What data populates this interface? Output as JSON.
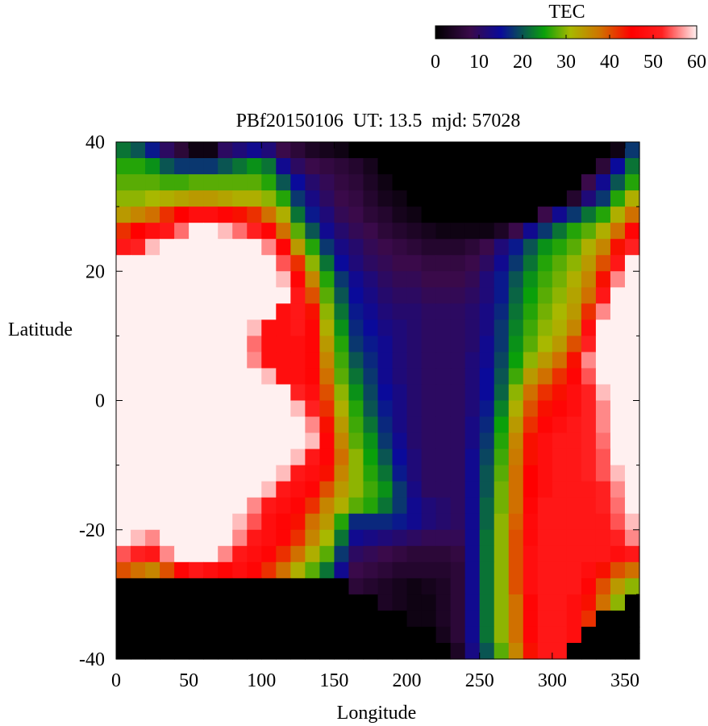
{
  "chart_data": {
    "type": "heatmap",
    "title": "PBf20150106  UT: 13.5  mjd: 57028",
    "xlabel": "Longitude",
    "ylabel": "Latitude",
    "xlim": [
      0,
      360
    ],
    "ylim": [
      -40,
      40
    ],
    "x_ticks": [
      0,
      50,
      100,
      150,
      200,
      250,
      300,
      350
    ],
    "y_ticks": [
      -40,
      -20,
      0,
      20,
      40
    ],
    "colorbar": {
      "label": "TEC",
      "range": [
        0,
        60
      ],
      "ticks": [
        0,
        10,
        20,
        30,
        40,
        50,
        60
      ],
      "stops": [
        {
          "value": 0,
          "color": "#000000"
        },
        {
          "value": 8,
          "color": "#3a0a4a"
        },
        {
          "value": 15,
          "color": "#0a0a9a"
        },
        {
          "value": 25,
          "color": "#0aa00a"
        },
        {
          "value": 31,
          "color": "#a8b800"
        },
        {
          "value": 38,
          "color": "#d07000"
        },
        {
          "value": 45,
          "color": "#ff0000"
        },
        {
          "value": 52,
          "color": "#ff2020"
        },
        {
          "value": 60,
          "color": "#fff0f0"
        }
      ]
    },
    "grid": {
      "lon_step": 10,
      "lat_step": 2.5,
      "lon": [
        0,
        10,
        20,
        30,
        40,
        50,
        60,
        70,
        80,
        90,
        100,
        110,
        120,
        130,
        140,
        150,
        160,
        170,
        180,
        190,
        200,
        210,
        220,
        230,
        240,
        250,
        260,
        270,
        280,
        290,
        300,
        310,
        320,
        330,
        340,
        350
      ],
      "lat": [
        40,
        37.5,
        35,
        32.5,
        30,
        27.5,
        25,
        22.5,
        20,
        17.5,
        15,
        12.5,
        10,
        7.5,
        5,
        2.5,
        0,
        -2.5,
        -5,
        -7.5,
        -10,
        -12.5,
        -15,
        -17.5,
        -20,
        -22.5,
        -25,
        -27.5,
        -30,
        -32.5,
        -35,
        -37.5
      ],
      "tec": [
        [
          22,
          20,
          16,
          10,
          6,
          2,
          2,
          10,
          12,
          14,
          12,
          8,
          6,
          4,
          3,
          2,
          0,
          0,
          0,
          0,
          0,
          0,
          0,
          0,
          0,
          0,
          0,
          0,
          0,
          0,
          0,
          0,
          0,
          0,
          2,
          18
        ],
        [
          26,
          26,
          24,
          20,
          18,
          18,
          18,
          20,
          22,
          24,
          22,
          14,
          10,
          8,
          7,
          6,
          5,
          3,
          0,
          0,
          0,
          0,
          0,
          0,
          0,
          0,
          0,
          0,
          0,
          0,
          0,
          0,
          0,
          6,
          15,
          22
        ],
        [
          28,
          28,
          28,
          27,
          27,
          28,
          28,
          28,
          28,
          28,
          26,
          20,
          15,
          11,
          9,
          7,
          6,
          4,
          2,
          0,
          0,
          0,
          0,
          0,
          0,
          0,
          0,
          0,
          0,
          0,
          0,
          0,
          8,
          14,
          20,
          26
        ],
        [
          30,
          30,
          31,
          32,
          33,
          34,
          34,
          33,
          32,
          32,
          30,
          26,
          18,
          13,
          10,
          8,
          7,
          5,
          3,
          2,
          0,
          0,
          0,
          0,
          0,
          0,
          0,
          0,
          0,
          0,
          0,
          5,
          12,
          18,
          26,
          32
        ],
        [
          34,
          36,
          38,
          42,
          45,
          48,
          48,
          46,
          44,
          42,
          38,
          32,
          22,
          16,
          12,
          9,
          8,
          6,
          5,
          3,
          2,
          0,
          0,
          0,
          0,
          0,
          0,
          0,
          0,
          8,
          14,
          18,
          22,
          26,
          32,
          38
        ],
        [
          42,
          45,
          48,
          50,
          55,
          60,
          60,
          58,
          55,
          52,
          46,
          38,
          28,
          20,
          14,
          11,
          9,
          8,
          6,
          5,
          4,
          3,
          2,
          2,
          2,
          2,
          4,
          8,
          14,
          18,
          22,
          26,
          28,
          32,
          38,
          46
        ],
        [
          50,
          52,
          58,
          60,
          60,
          60,
          60,
          60,
          60,
          60,
          56,
          46,
          34,
          26,
          18,
          13,
          11,
          9,
          8,
          7,
          6,
          5,
          5,
          5,
          6,
          8,
          12,
          16,
          20,
          24,
          26,
          28,
          32,
          36,
          44,
          52
        ],
        [
          60,
          60,
          60,
          60,
          60,
          60,
          60,
          60,
          60,
          60,
          60,
          54,
          42,
          30,
          22,
          15,
          12,
          10,
          9,
          8,
          8,
          7,
          7,
          7,
          8,
          10,
          14,
          18,
          22,
          26,
          28,
          30,
          34,
          40,
          50,
          60
        ],
        [
          60,
          60,
          60,
          60,
          60,
          60,
          60,
          60,
          60,
          60,
          60,
          58,
          46,
          36,
          26,
          18,
          14,
          12,
          10,
          9,
          9,
          8,
          8,
          8,
          9,
          12,
          16,
          20,
          24,
          27,
          29,
          32,
          36,
          44,
          56,
          60
        ],
        [
          60,
          60,
          60,
          60,
          60,
          60,
          60,
          60,
          60,
          60,
          60,
          60,
          50,
          40,
          28,
          20,
          15,
          13,
          11,
          10,
          10,
          9,
          9,
          9,
          10,
          12,
          16,
          21,
          25,
          28,
          30,
          33,
          38,
          50,
          60,
          60
        ],
        [
          60,
          60,
          60,
          60,
          60,
          60,
          60,
          60,
          60,
          60,
          60,
          48,
          50,
          44,
          30,
          22,
          16,
          14,
          12,
          11,
          11,
          10,
          10,
          10,
          11,
          13,
          17,
          22,
          26,
          29,
          31,
          34,
          42,
          56,
          60,
          60
        ],
        [
          60,
          60,
          60,
          60,
          60,
          60,
          60,
          60,
          60,
          58,
          48,
          48,
          50,
          46,
          32,
          24,
          17,
          15,
          13,
          12,
          11,
          10,
          10,
          10,
          11,
          13,
          18,
          23,
          27,
          30,
          32,
          36,
          48,
          60,
          60,
          60
        ],
        [
          60,
          60,
          60,
          60,
          60,
          60,
          60,
          60,
          60,
          55,
          48,
          48,
          48,
          46,
          34,
          26,
          18,
          16,
          14,
          12,
          11,
          10,
          10,
          10,
          11,
          14,
          18,
          24,
          28,
          31,
          34,
          40,
          52,
          60,
          60,
          60
        ],
        [
          60,
          60,
          60,
          60,
          60,
          60,
          60,
          60,
          60,
          56,
          48,
          48,
          48,
          46,
          36,
          27,
          20,
          17,
          14,
          12,
          11,
          10,
          10,
          10,
          12,
          14,
          19,
          25,
          30,
          34,
          38,
          44,
          56,
          60,
          60,
          60
        ],
        [
          60,
          60,
          60,
          60,
          60,
          60,
          60,
          60,
          60,
          60,
          58,
          48,
          48,
          46,
          38,
          28,
          22,
          18,
          14,
          12,
          11,
          10,
          10,
          10,
          12,
          15,
          20,
          27,
          34,
          38,
          42,
          46,
          54,
          60,
          60,
          60
        ],
        [
          60,
          60,
          60,
          60,
          60,
          60,
          60,
          60,
          60,
          60,
          60,
          60,
          52,
          48,
          40,
          30,
          24,
          19,
          15,
          13,
          11,
          10,
          10,
          10,
          12,
          15,
          21,
          30,
          38,
          42,
          44,
          48,
          52,
          58,
          60,
          60
        ],
        [
          60,
          60,
          60,
          60,
          60,
          60,
          60,
          60,
          60,
          60,
          60,
          60,
          58,
          52,
          42,
          32,
          26,
          20,
          16,
          13,
          11,
          10,
          10,
          10,
          12,
          16,
          23,
          32,
          40,
          44,
          46,
          48,
          52,
          56,
          60,
          60
        ],
        [
          60,
          60,
          60,
          60,
          60,
          60,
          60,
          60,
          60,
          60,
          60,
          60,
          60,
          56,
          44,
          34,
          27,
          22,
          17,
          13,
          11,
          10,
          10,
          10,
          13,
          17,
          25,
          34,
          42,
          46,
          48,
          50,
          52,
          56,
          60,
          60
        ],
        [
          60,
          60,
          60,
          60,
          60,
          60,
          60,
          60,
          60,
          60,
          60,
          60,
          60,
          58,
          46,
          36,
          28,
          24,
          18,
          14,
          11,
          10,
          10,
          10,
          13,
          18,
          26,
          36,
          44,
          48,
          50,
          50,
          52,
          55,
          60,
          60
        ],
        [
          60,
          60,
          60,
          60,
          60,
          60,
          60,
          60,
          60,
          60,
          60,
          60,
          58,
          50,
          46,
          38,
          30,
          25,
          20,
          15,
          12,
          10,
          10,
          10,
          14,
          19,
          27,
          37,
          44,
          48,
          50,
          50,
          52,
          54,
          60,
          60
        ],
        [
          60,
          60,
          60,
          60,
          60,
          60,
          60,
          60,
          60,
          60,
          60,
          58,
          50,
          48,
          44,
          36,
          30,
          26,
          22,
          16,
          12,
          10,
          10,
          10,
          14,
          20,
          28,
          38,
          45,
          48,
          50,
          50,
          52,
          54,
          58,
          60
        ],
        [
          60,
          60,
          60,
          60,
          60,
          60,
          60,
          60,
          60,
          60,
          58,
          50,
          48,
          46,
          40,
          34,
          30,
          27,
          24,
          18,
          13,
          10,
          10,
          10,
          14,
          20,
          29,
          38,
          45,
          48,
          50,
          50,
          50,
          52,
          56,
          60
        ],
        [
          60,
          60,
          60,
          60,
          60,
          60,
          60,
          60,
          60,
          56,
          50,
          48,
          46,
          42,
          36,
          32,
          28,
          26,
          22,
          18,
          14,
          12,
          11,
          10,
          14,
          21,
          29,
          38,
          46,
          50,
          50,
          50,
          50,
          52,
          55,
          60
        ],
        [
          60,
          60,
          60,
          60,
          60,
          60,
          60,
          60,
          58,
          54,
          48,
          46,
          44,
          38,
          34,
          26,
          17,
          17,
          17,
          16,
          14,
          12,
          11,
          10,
          14,
          21,
          30,
          39,
          47,
          50,
          50,
          50,
          50,
          50,
          54,
          58
        ],
        [
          60,
          58,
          56,
          60,
          60,
          60,
          60,
          60,
          56,
          50,
          48,
          46,
          42,
          36,
          31,
          22,
          14,
          13,
          12,
          11,
          10,
          9,
          9,
          9,
          14,
          22,
          30,
          40,
          47,
          50,
          50,
          50,
          50,
          50,
          52,
          56
        ],
        [
          54,
          52,
          50,
          56,
          60,
          60,
          60,
          56,
          50,
          48,
          46,
          42,
          38,
          32,
          28,
          18,
          10,
          9,
          8,
          7,
          6,
          6,
          6,
          7,
          14,
          22,
          30,
          40,
          48,
          50,
          50,
          50,
          50,
          50,
          48,
          50
        ],
        [
          40,
          38,
          36,
          40,
          46,
          50,
          48,
          46,
          48,
          46,
          42,
          38,
          32,
          28,
          22,
          14,
          8,
          7,
          6,
          5,
          5,
          5,
          5,
          6,
          14,
          22,
          30,
          40,
          48,
          50,
          50,
          50,
          48,
          44,
          40,
          38
        ],
        [
          0,
          0,
          0,
          0,
          0,
          0,
          0,
          0,
          0,
          0,
          0,
          0,
          0,
          0,
          0,
          0,
          6,
          5,
          4,
          3,
          2,
          3,
          4,
          6,
          14,
          22,
          30,
          40,
          48,
          50,
          50,
          50,
          46,
          40,
          34,
          30
        ],
        [
          0,
          0,
          0,
          0,
          0,
          0,
          0,
          0,
          0,
          0,
          0,
          0,
          0,
          0,
          0,
          0,
          0,
          0,
          4,
          3,
          2,
          2,
          4,
          6,
          14,
          22,
          30,
          38,
          46,
          50,
          50,
          48,
          44,
          38,
          30,
          0
        ],
        [
          0,
          0,
          0,
          0,
          0,
          0,
          0,
          0,
          0,
          0,
          0,
          0,
          0,
          0,
          0,
          0,
          0,
          0,
          0,
          0,
          2,
          2,
          4,
          6,
          14,
          22,
          30,
          38,
          46,
          50,
          50,
          48,
          42,
          0,
          0,
          0
        ],
        [
          0,
          0,
          0,
          0,
          0,
          0,
          0,
          0,
          0,
          0,
          0,
          0,
          0,
          0,
          0,
          0,
          0,
          0,
          0,
          0,
          0,
          0,
          3,
          6,
          14,
          22,
          30,
          38,
          46,
          50,
          50,
          48,
          0,
          0,
          0,
          0
        ],
        [
          0,
          0,
          0,
          0,
          0,
          0,
          0,
          0,
          0,
          0,
          0,
          0,
          0,
          0,
          0,
          0,
          0,
          0,
          0,
          0,
          0,
          0,
          0,
          4,
          13,
          20,
          28,
          36,
          44,
          50,
          50,
          0,
          0,
          0,
          0,
          0
        ]
      ]
    }
  }
}
